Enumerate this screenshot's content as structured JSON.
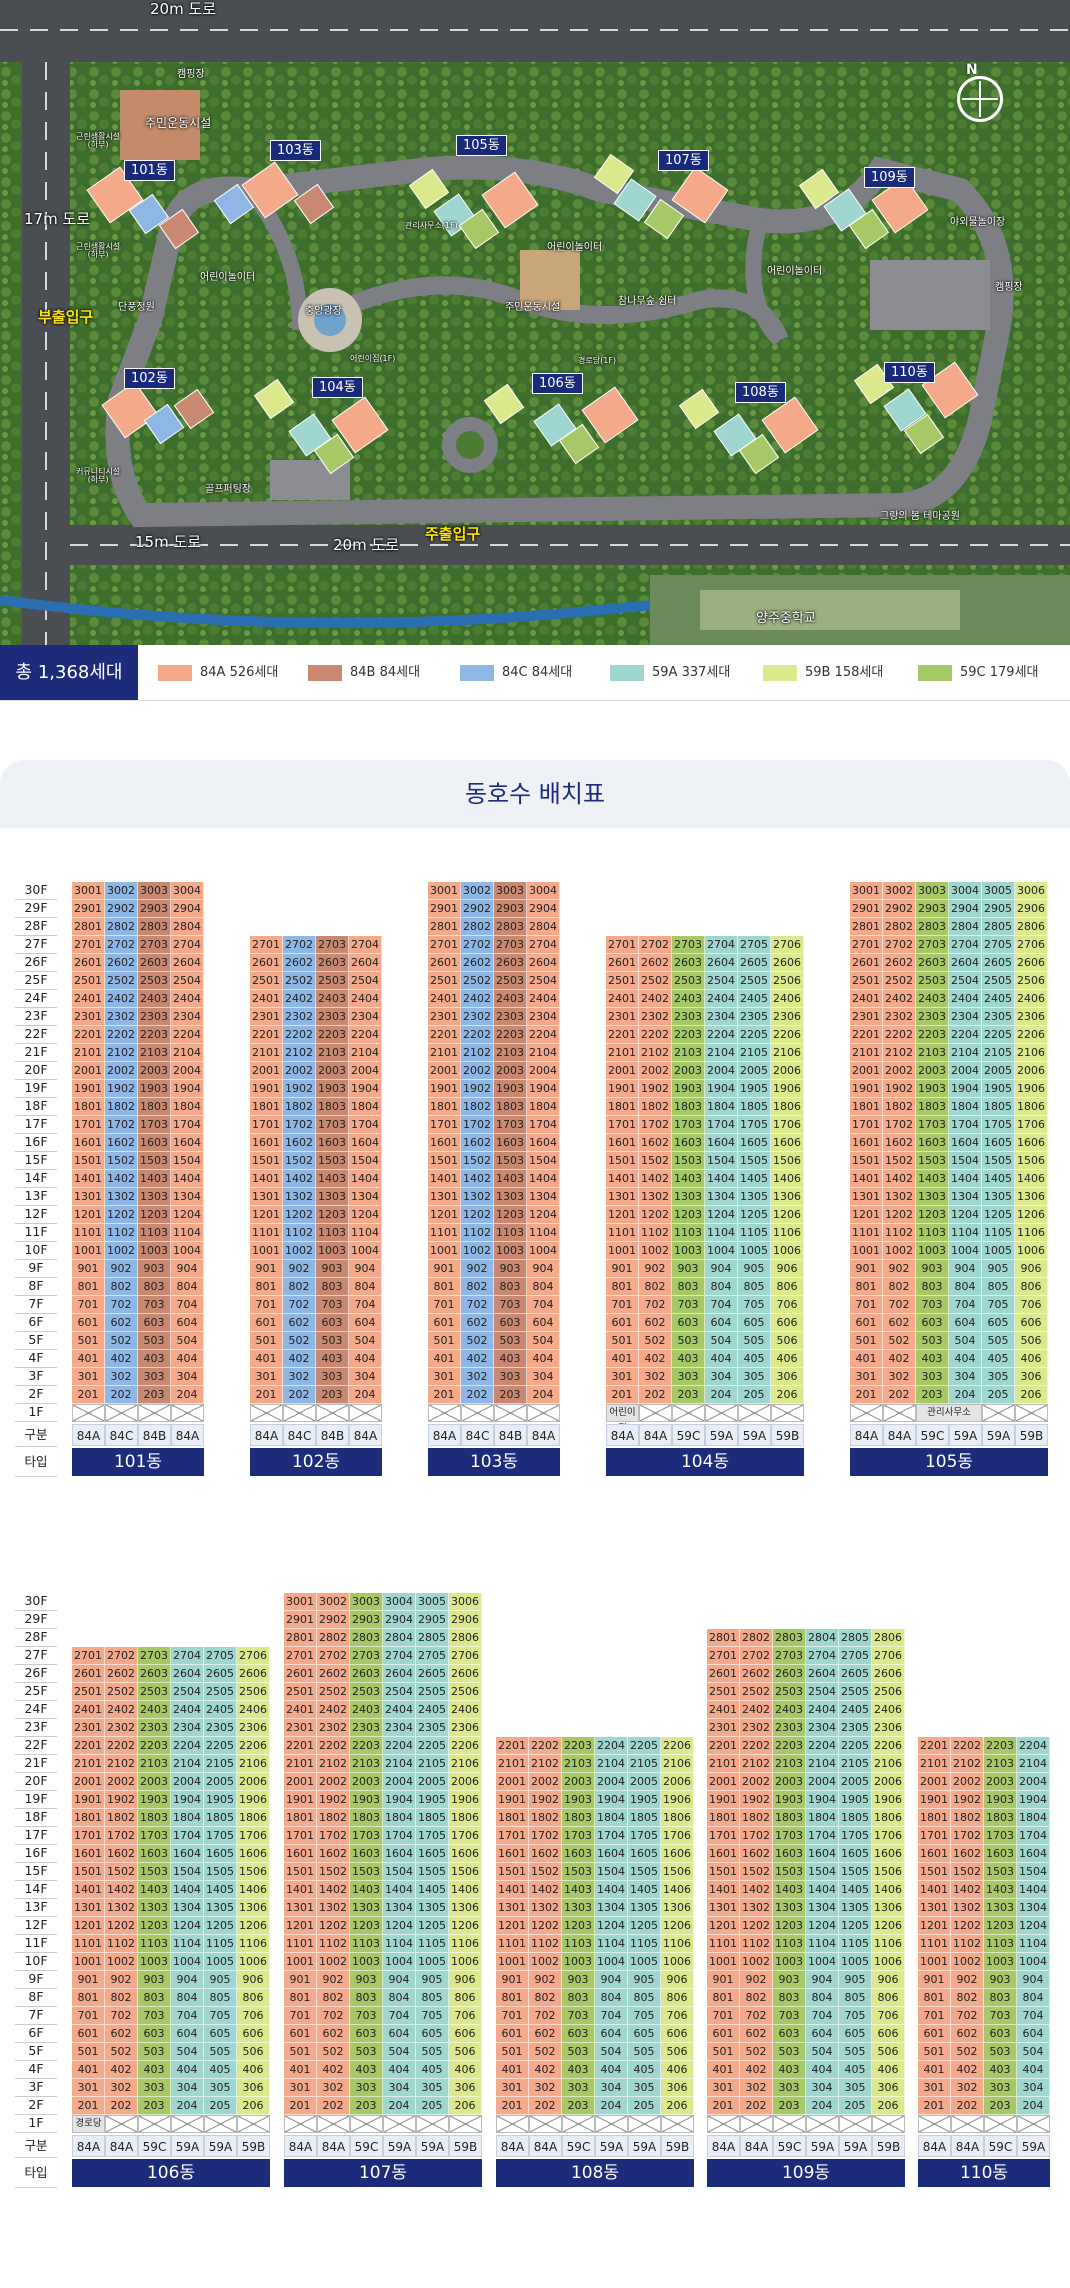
{
  "map": {
    "roads": {
      "north": "20m 도로",
      "west": "17m 도로",
      "south_left": "15m 도로",
      "south_right": "20m 도로"
    },
    "gates": {
      "west": "부출입구",
      "south": "주출입구"
    },
    "compass": "N",
    "dongs": [
      "101동",
      "102동",
      "103동",
      "104동",
      "105동",
      "106동",
      "107동",
      "108동",
      "109동",
      "110동"
    ],
    "facilities": {
      "camping1": "캠핑장",
      "community1": "주민운동시설",
      "nh1": "근린생활시설\n(하부)",
      "nh2": "근린생활시설\n(하부)",
      "nh3": "커뮤니티시설\n(하부)",
      "playground1": "어린이놀이터",
      "playground2": "어린이놀이터",
      "playground3": "어린이놀이터",
      "garden": "단풍정원",
      "plaza": "중앙광장",
      "daycare": "어린이집(1F)",
      "golf": "골프퍼팅장",
      "management": "관리사무소(1F)",
      "community2": "주민운동시설",
      "seniors": "경로당(1F)",
      "shade": "참나무숲 쉼터",
      "outdoor": "야외물놀이장",
      "camping2": "캠핑장",
      "park": "그랑의 봄 테마공원",
      "school": "양주중학교"
    }
  },
  "legend": {
    "total": "총 1,368세대",
    "items": [
      {
        "label": "84A 526세대",
        "color": "#f3a98a"
      },
      {
        "label": "84B 84세대",
        "color": "#c98970"
      },
      {
        "label": "84C 84세대",
        "color": "#8fb7e6"
      },
      {
        "label": "59A 337세대",
        "color": "#9fd6cf"
      },
      {
        "label": "59B 158세대",
        "color": "#dbe98c"
      },
      {
        "label": "59C 179세대",
        "color": "#a6c866"
      }
    ]
  },
  "section": {
    "title": "동호수 배치표"
  },
  "table": {
    "floor_header_type": "구분",
    "floor_header_name": "타입",
    "type_colors": {
      "84A": "#f3a98a",
      "84B": "#c98970",
      "84C": "#8fb7e6",
      "59A": "#9fd6cf",
      "59B": "#dbe98c",
      "59C": "#a6c866"
    },
    "buildings": [
      {
        "name": "101동",
        "row": 0,
        "types": [
          "84A",
          "84C",
          "84B",
          "84A"
        ],
        "top": 30,
        "note": ""
      },
      {
        "name": "102동",
        "row": 0,
        "types": [
          "84A",
          "84C",
          "84B",
          "84A"
        ],
        "top": 27,
        "note": ""
      },
      {
        "name": "103동",
        "row": 0,
        "types": [
          "84A",
          "84C",
          "84B",
          "84A"
        ],
        "top": 30,
        "note": ""
      },
      {
        "name": "104동",
        "row": 0,
        "types": [
          "84A",
          "84A",
          "59C",
          "59A",
          "59A",
          "59B"
        ],
        "top": 27,
        "note": "어린이집"
      },
      {
        "name": "105동",
        "row": 0,
        "types": [
          "84A",
          "84A",
          "59C",
          "59A",
          "59A",
          "59B"
        ],
        "top": 30,
        "note": "관리사무소"
      },
      {
        "name": "106동",
        "row": 1,
        "types": [
          "84A",
          "84A",
          "59C",
          "59A",
          "59A",
          "59B"
        ],
        "top": 27,
        "note": "경로당"
      },
      {
        "name": "107동",
        "row": 1,
        "types": [
          "84A",
          "84A",
          "59C",
          "59A",
          "59A",
          "59B"
        ],
        "top": 30,
        "note": ""
      },
      {
        "name": "108동",
        "row": 1,
        "types": [
          "84A",
          "84A",
          "59C",
          "59A",
          "59A",
          "59B"
        ],
        "top": 22,
        "note": ""
      },
      {
        "name": "109동",
        "row": 1,
        "types": [
          "84A",
          "84A",
          "59C",
          "59A",
          "59A",
          "59B"
        ],
        "top": 28,
        "note": ""
      },
      {
        "name": "110동",
        "row": 1,
        "types": [
          "84A",
          "84A",
          "59C",
          "59A"
        ],
        "top": 22,
        "note": ""
      }
    ]
  }
}
